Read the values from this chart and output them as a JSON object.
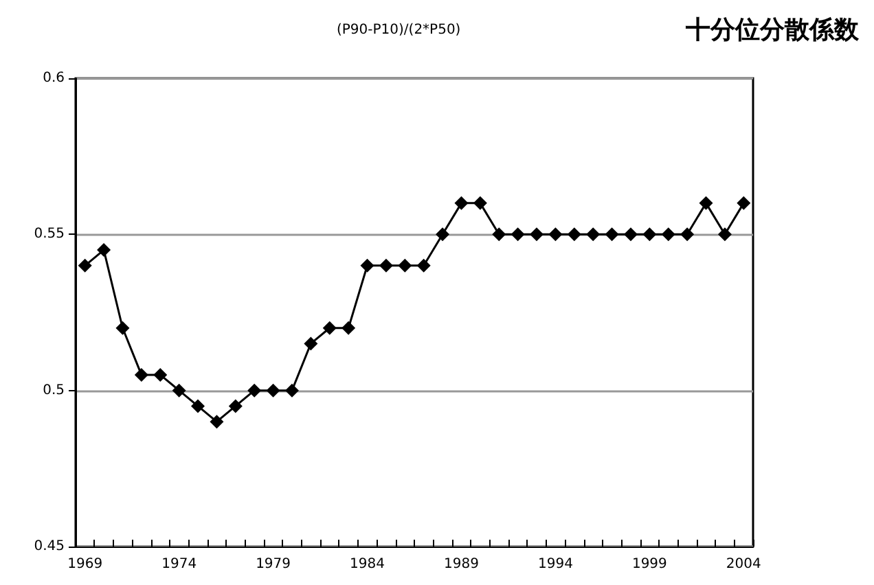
{
  "chart_data": {
    "type": "line",
    "title": "十分位分散係数",
    "subtitle": "(P90-P10)/(2*P50)",
    "categories": [
      "1969",
      null,
      null,
      null,
      null,
      "1974",
      null,
      null,
      null,
      null,
      "1979",
      null,
      null,
      null,
      null,
      "1984",
      null,
      null,
      null,
      null,
      "1989",
      null,
      null,
      null,
      null,
      "1994",
      null,
      null,
      null,
      null,
      "1999",
      null,
      null,
      null,
      null,
      "2004"
    ],
    "series": [
      {
        "color": "#000000",
        "values": [
          0.54,
          0.545,
          0.52,
          0.505,
          0.505,
          0.5,
          0.495,
          0.49,
          0.495,
          0.5,
          0.5,
          0.5,
          0.515,
          0.52,
          0.52,
          0.54,
          0.54,
          0.54,
          0.54,
          0.55,
          0.56,
          0.56,
          0.55,
          0.55,
          0.55,
          0.55,
          0.55,
          0.55,
          0.55,
          0.55,
          0.55,
          0.55,
          0.55,
          0.56,
          0.55,
          0.56
        ]
      }
    ],
    "ylim": [
      0.45,
      0.6
    ],
    "yticks": [
      0.45,
      0.5,
      0.55,
      0.6
    ],
    "grid": "y",
    "marker": "diamond",
    "line_style": "solid"
  }
}
